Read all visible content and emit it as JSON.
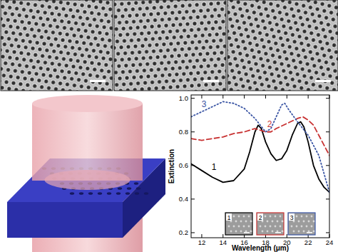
{
  "chart_data": {
    "type": "line",
    "x_label": "Wavelength (μm)",
    "y_label": "Extinction",
    "xlim": [
      11,
      24
    ],
    "xticks": [
      12,
      14,
      16,
      18,
      20,
      22,
      24
    ],
    "ylim": [
      0.17,
      1.02
    ],
    "yticks": [
      0.2,
      0.4,
      0.6,
      0.8,
      {
        "value": 1,
        "label": "1.0"
      }
    ],
    "grid": false,
    "series": [
      {
        "name": "1",
        "color": "#000000",
        "line_style": "solid",
        "x": [
          11,
          12,
          13,
          14,
          15,
          16,
          16.5,
          17,
          17.3,
          17.6,
          18,
          18.5,
          19,
          19.5,
          20,
          20.5,
          21,
          21.3,
          21.6,
          22,
          22.5,
          23,
          23.5,
          24
        ],
        "values": [
          0.61,
          0.57,
          0.53,
          0.5,
          0.51,
          0.58,
          0.68,
          0.8,
          0.84,
          0.82,
          0.74,
          0.67,
          0.63,
          0.64,
          0.69,
          0.78,
          0.85,
          0.86,
          0.83,
          0.74,
          0.6,
          0.52,
          0.47,
          0.44
        ]
      },
      {
        "name": "2",
        "color": "#c83232",
        "line_style": "dashed",
        "x": [
          11,
          12,
          13,
          14,
          15,
          16,
          17,
          17.5,
          18,
          18.5,
          19,
          20,
          21,
          21.5,
          22,
          22.5,
          23,
          23.5,
          24
        ],
        "values": [
          0.76,
          0.75,
          0.76,
          0.77,
          0.79,
          0.8,
          0.82,
          0.81,
          0.8,
          0.8,
          0.82,
          0.85,
          0.88,
          0.89,
          0.87,
          0.84,
          0.78,
          0.72,
          0.66
        ]
      },
      {
        "name": "3",
        "color": "#3a55a4",
        "line_style": "dotted",
        "x": [
          11,
          12,
          13,
          14,
          15,
          16,
          17,
          17.5,
          18,
          18.5,
          19,
          19.5,
          19.8,
          20.2,
          21,
          22,
          23,
          23.5,
          24
        ],
        "values": [
          0.89,
          0.92,
          0.95,
          0.98,
          0.97,
          0.94,
          0.88,
          0.84,
          0.8,
          0.82,
          0.89,
          0.96,
          0.97,
          0.93,
          0.86,
          0.78,
          0.66,
          0.55,
          0.44
        ]
      }
    ]
  }
}
